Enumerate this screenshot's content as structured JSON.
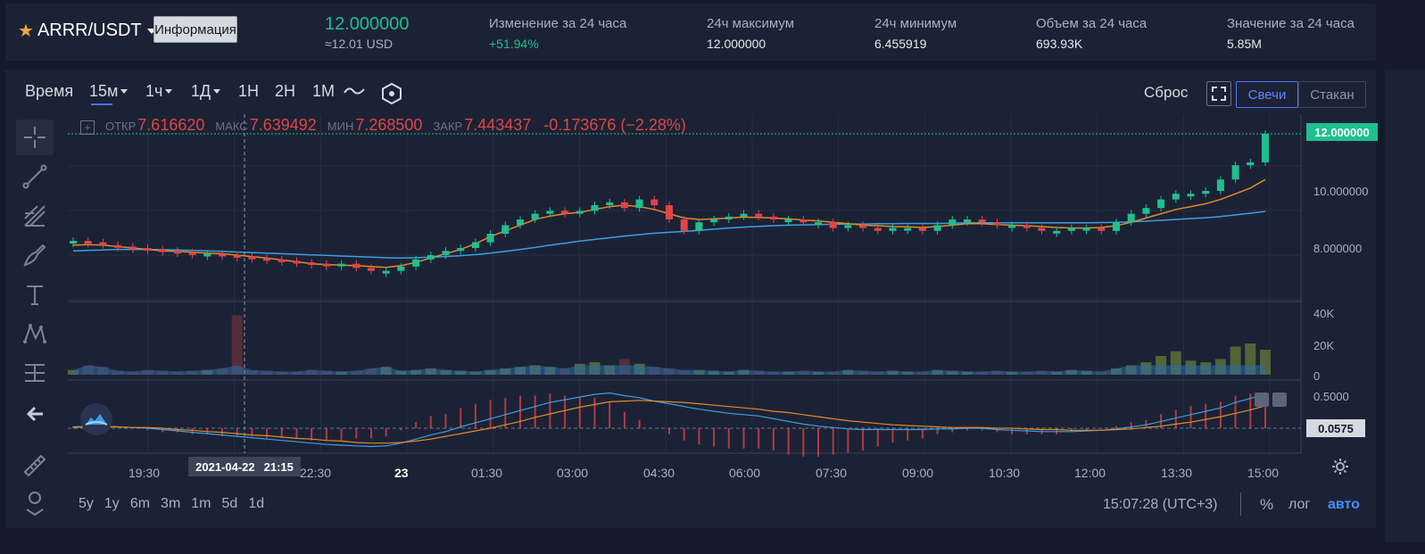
{
  "header": {
    "pair": "ARRR/USDT",
    "info_button": "Информация",
    "last_price": "12.000000",
    "usd_price": "≈12.01 USD",
    "stats": [
      {
        "label": "Изменение за 24 часа",
        "value": "+51.94%"
      },
      {
        "label": "24ч максимум",
        "value": "12.000000"
      },
      {
        "label": "24ч минимум",
        "value": "6.455919"
      },
      {
        "label": "Объем за 24 часа",
        "value": "693.93K"
      },
      {
        "label": "Значение за 24 часа",
        "value": "5.85M"
      }
    ]
  },
  "toolbar": {
    "time_label": "Время",
    "intervals": [
      "15м",
      "1ч",
      "1Д",
      "1Н",
      "2Н",
      "1М"
    ],
    "reset": "Сброс",
    "view_candles": "Свечи",
    "view_book": "Стакан"
  },
  "ohlc": {
    "open_label": "ОТКР",
    "open": "7.616620",
    "high_label": "МАКС",
    "high": "7.639492",
    "low_label": "МИН",
    "low": "7.268500",
    "close_label": "ЗАКР",
    "close": "7.443437",
    "change": "-0.173676 (−2.28%)"
  },
  "axes": {
    "price_ticks": [
      "10.000000",
      "8.000000"
    ],
    "volume_ticks": [
      "40K",
      "20K",
      "0"
    ],
    "osc_ticks": [
      "0.5000"
    ],
    "time_ticks": [
      "19:30",
      "22:30",
      "23",
      "01:30",
      "03:00",
      "04:30",
      "06:00",
      "07:30",
      "09:00",
      "10:30",
      "12:00",
      "13:30",
      "15:00"
    ],
    "crosshair_date": "2021-04-22",
    "crosshair_time": "21:15",
    "price_tag": "12.000000",
    "osc_tag": "0.0575"
  },
  "footer": {
    "ranges": [
      "5y",
      "1y",
      "6m",
      "3m",
      "1m",
      "5d",
      "1d"
    ],
    "clock": "15:07:28 (UTC+3)",
    "percent": "%",
    "log": "лог",
    "auto": "авто"
  },
  "colors": {
    "up": "#1fbf8f",
    "down": "#e04545",
    "accent": "#4a72ff",
    "ma_fast": "#e08a2a",
    "ma_slow": "#3a9fe0"
  },
  "chart_data": {
    "type": "candlestick",
    "price_axis": [
      8,
      10
    ],
    "volume_axis": [
      0,
      40000
    ],
    "open": [
      8.2,
      8.25,
      8.2,
      8.1,
      8.05,
      8.0,
      7.95,
      7.9,
      7.85,
      7.8,
      7.8,
      7.75,
      7.7,
      7.65,
      7.6,
      7.55,
      7.5,
      7.45,
      7.4,
      7.45,
      7.3,
      7.2,
      7.2,
      7.35,
      7.6,
      7.75,
      7.9,
      8.0,
      8.2,
      8.5,
      8.8,
      9.0,
      9.2,
      9.3,
      9.2,
      9.3,
      9.5,
      9.6,
      9.4,
      9.7,
      9.5,
      9.0,
      8.6,
      8.9,
      9.0,
      9.1,
      9.2,
      9.1,
      9.0,
      9.0,
      8.9,
      8.9,
      8.7,
      8.8,
      8.7,
      8.6,
      8.7,
      8.7,
      8.6,
      8.8,
      9.0,
      9.0,
      8.9,
      8.8,
      8.8,
      8.7,
      8.6,
      8.6,
      8.7,
      8.7,
      8.6,
      8.9,
      9.2,
      9.4,
      9.7,
      9.9,
      9.9,
      10.0,
      10.4,
      10.9,
      11.0
    ],
    "close": [
      8.25,
      8.2,
      8.1,
      8.05,
      8.0,
      7.95,
      7.9,
      7.85,
      7.8,
      7.8,
      7.75,
      7.7,
      7.65,
      7.6,
      7.55,
      7.5,
      7.45,
      7.4,
      7.45,
      7.3,
      7.2,
      7.2,
      7.35,
      7.6,
      7.75,
      7.9,
      8.0,
      8.2,
      8.5,
      8.8,
      9.0,
      9.2,
      9.3,
      9.2,
      9.3,
      9.5,
      9.6,
      9.4,
      9.7,
      9.5,
      9.0,
      8.6,
      8.9,
      9.0,
      9.1,
      9.2,
      9.1,
      9.0,
      9.0,
      8.9,
      8.9,
      8.7,
      8.8,
      8.7,
      8.6,
      8.7,
      8.7,
      8.6,
      8.8,
      9.0,
      9.0,
      8.9,
      8.8,
      8.8,
      8.7,
      8.6,
      8.6,
      8.7,
      8.7,
      8.6,
      8.9,
      9.2,
      9.4,
      9.7,
      9.9,
      9.9,
      10.0,
      10.4,
      10.9,
      11.0,
      12.0
    ],
    "ma_fast": [
      8.1,
      8.12,
      8.1,
      8.05,
      8.0,
      7.95,
      7.9,
      7.88,
      7.85,
      7.82,
      7.8,
      7.75,
      7.7,
      7.65,
      7.58,
      7.52,
      7.45,
      7.42,
      7.4,
      7.38,
      7.35,
      7.32,
      7.38,
      7.5,
      7.65,
      7.8,
      7.95,
      8.15,
      8.4,
      8.6,
      8.8,
      9.0,
      9.12,
      9.2,
      9.25,
      9.35,
      9.45,
      9.5,
      9.45,
      9.35,
      9.2,
      9.05,
      9.0,
      9.02,
      9.05,
      9.08,
      9.07,
      9.05,
      9.02,
      8.98,
      8.95,
      8.9,
      8.85,
      8.8,
      8.78,
      8.75,
      8.74,
      8.72,
      8.75,
      8.8,
      8.85,
      8.85,
      8.82,
      8.8,
      8.78,
      8.75,
      8.72,
      8.7,
      8.7,
      8.72,
      8.78,
      8.9,
      9.05,
      9.2,
      9.35,
      9.45,
      9.55,
      9.7,
      9.9,
      10.1,
      10.4
    ],
    "ma_slow": [
      7.9,
      7.92,
      7.93,
      7.95,
      7.95,
      7.95,
      7.94,
      7.93,
      7.92,
      7.9,
      7.88,
      7.86,
      7.84,
      7.82,
      7.8,
      7.78,
      7.76,
      7.74,
      7.72,
      7.7,
      7.68,
      7.66,
      7.65,
      7.66,
      7.68,
      7.7,
      7.73,
      7.77,
      7.82,
      7.88,
      7.95,
      8.02,
      8.1,
      8.17,
      8.24,
      8.3,
      8.36,
      8.42,
      8.47,
      8.52,
      8.55,
      8.58,
      8.62,
      8.66,
      8.7,
      8.73,
      8.76,
      8.78,
      8.8,
      8.81,
      8.82,
      8.83,
      8.84,
      8.84,
      8.85,
      8.85,
      8.86,
      8.86,
      8.86,
      8.87,
      8.88,
      8.88,
      8.88,
      8.88,
      8.88,
      8.88,
      8.88,
      8.88,
      8.88,
      8.89,
      8.9,
      8.92,
      8.94,
      8.97,
      9.0,
      9.03,
      9.06,
      9.1,
      9.16,
      9.22,
      9.28
    ],
    "volume": [
      3000,
      6000,
      5000,
      2500,
      2000,
      3000,
      2500,
      2000,
      2500,
      3000,
      4000,
      38000,
      3000,
      2500,
      2000,
      2000,
      3000,
      2500,
      2000,
      2500,
      4000,
      5000,
      2500,
      3000,
      4000,
      3000,
      2500,
      2000,
      3000,
      4000,
      5000,
      6000,
      5000,
      4000,
      7000,
      8000,
      6000,
      10000,
      7000,
      5000,
      4000,
      3000,
      3000,
      2500,
      2000,
      3000,
      2500,
      2000,
      2000,
      2500,
      2000,
      2000,
      3000,
      2500,
      2000,
      2500,
      2000,
      2000,
      3000,
      2500,
      2000,
      2000,
      2500,
      2000,
      2000,
      2500,
      2000,
      3000,
      2500,
      2000,
      4000,
      6000,
      8000,
      12000,
      15000,
      9000,
      8000,
      10000,
      18000,
      20000,
      16000
    ],
    "osc": [
      0.02,
      0.03,
      0.03,
      0.02,
      0.01,
      0.0,
      -0.02,
      -0.04,
      -0.06,
      -0.08,
      -0.1,
      -0.12,
      -0.14,
      -0.16,
      -0.18,
      -0.2,
      -0.22,
      -0.24,
      -0.25,
      -0.26,
      -0.27,
      -0.26,
      -0.22,
      -0.16,
      -0.1,
      -0.05,
      0.02,
      0.08,
      0.14,
      0.2,
      0.26,
      0.32,
      0.38,
      0.42,
      0.46,
      0.5,
      0.52,
      0.48,
      0.45,
      0.4,
      0.36,
      0.32,
      0.28,
      0.25,
      0.22,
      0.2,
      0.18,
      0.14,
      0.1,
      0.06,
      0.03,
      0.01,
      -0.01,
      -0.02,
      -0.02,
      -0.02,
      -0.02,
      -0.02,
      -0.01,
      -0.01,
      0.0,
      0.0,
      -0.02,
      -0.03,
      -0.04,
      -0.05,
      -0.05,
      -0.05,
      -0.04,
      -0.03,
      -0.01,
      0.02,
      0.05,
      0.1,
      0.15,
      0.2,
      0.25,
      0.3,
      0.38,
      0.44,
      0.5
    ],
    "signal": [
      0.01,
      0.02,
      0.02,
      0.02,
      0.01,
      0.01,
      0.0,
      -0.02,
      -0.03,
      -0.05,
      -0.06,
      -0.08,
      -0.1,
      -0.11,
      -0.13,
      -0.15,
      -0.16,
      -0.18,
      -0.19,
      -0.21,
      -0.22,
      -0.22,
      -0.21,
      -0.19,
      -0.16,
      -0.12,
      -0.08,
      -0.04,
      0.0,
      0.05,
      0.1,
      0.16,
      0.21,
      0.26,
      0.31,
      0.35,
      0.39,
      0.4,
      0.41,
      0.4,
      0.39,
      0.38,
      0.36,
      0.34,
      0.32,
      0.3,
      0.28,
      0.25,
      0.23,
      0.2,
      0.17,
      0.14,
      0.11,
      0.09,
      0.07,
      0.05,
      0.04,
      0.03,
      0.02,
      0.01,
      0.01,
      0.01,
      0.0,
      0.0,
      -0.01,
      -0.02,
      -0.02,
      -0.03,
      -0.03,
      -0.03,
      -0.02,
      -0.01,
      0.01,
      0.03,
      0.06,
      0.09,
      0.13,
      0.17,
      0.22,
      0.27,
      0.33
    ]
  }
}
